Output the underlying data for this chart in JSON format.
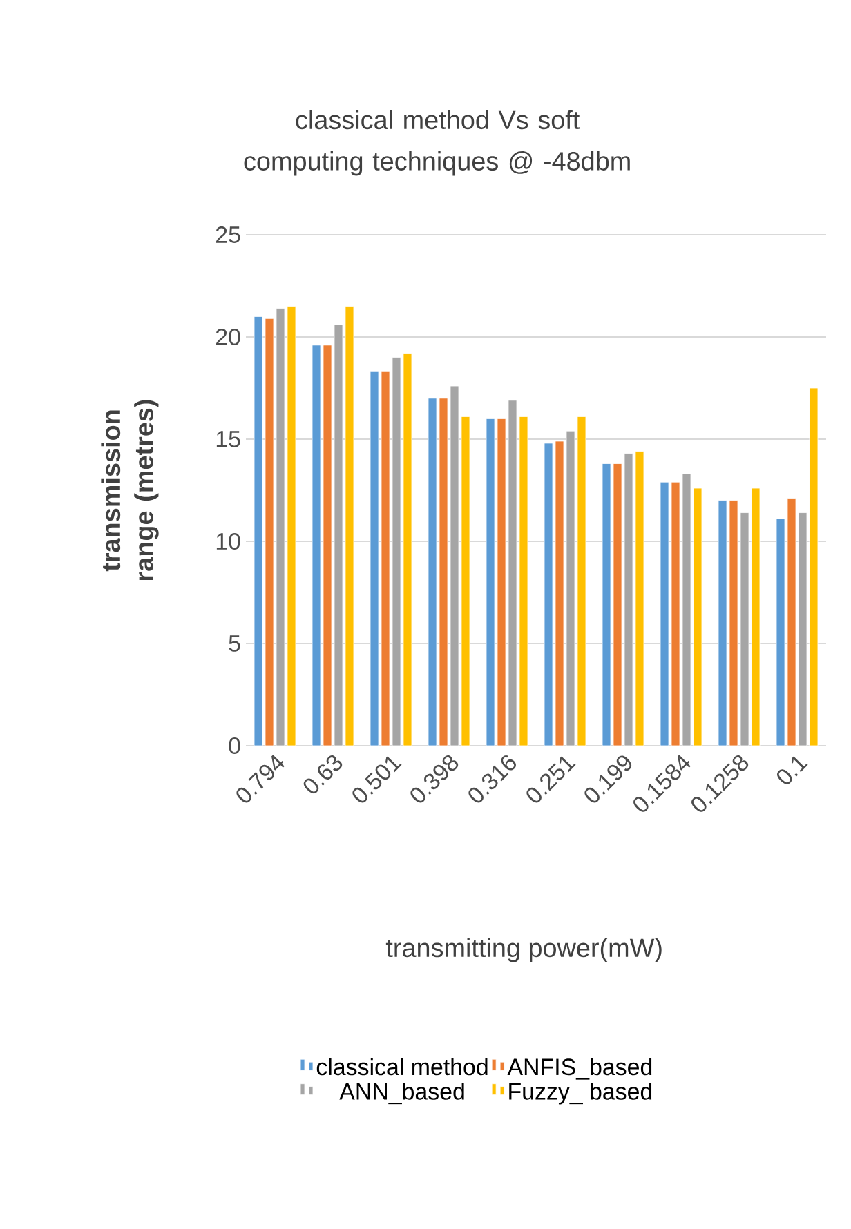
{
  "chart_data": {
    "type": "bar",
    "title": "classical method Vs soft computing techniques @ -48dbm",
    "xlabel": "transmitting power(mW)",
    "ylabel": "transmission range (metres)",
    "categories": [
      "0.794",
      "0.63",
      "0.501",
      "0.398",
      "0.316",
      "0.251",
      "0.199",
      "0.1584",
      "0.1258",
      "0.1"
    ],
    "series": [
      {
        "name": "classical method",
        "color": "#5b9bd5",
        "values": [
          21.0,
          19.6,
          18.3,
          17.0,
          16.0,
          14.8,
          13.8,
          12.9,
          12.0,
          11.1
        ]
      },
      {
        "name": "ANFIS_based",
        "color": "#ed7d31",
        "values": [
          20.9,
          19.6,
          18.3,
          17.0,
          16.0,
          14.9,
          13.8,
          12.9,
          12.0,
          12.1
        ]
      },
      {
        "name": "ANN_based",
        "color": "#a5a5a5",
        "values": [
          21.4,
          20.6,
          19.0,
          17.6,
          16.9,
          15.4,
          14.3,
          13.3,
          11.4,
          11.4
        ]
      },
      {
        "name": "Fuzzy_ based",
        "color": "#ffc000",
        "values": [
          21.5,
          21.5,
          19.2,
          16.1,
          16.1,
          16.1,
          14.4,
          12.6,
          12.6,
          17.5
        ]
      }
    ],
    "ylim": [
      0,
      25
    ],
    "yticks": [
      0,
      5,
      10,
      15,
      20,
      25
    ],
    "grid": "y",
    "legend": "bottom"
  }
}
